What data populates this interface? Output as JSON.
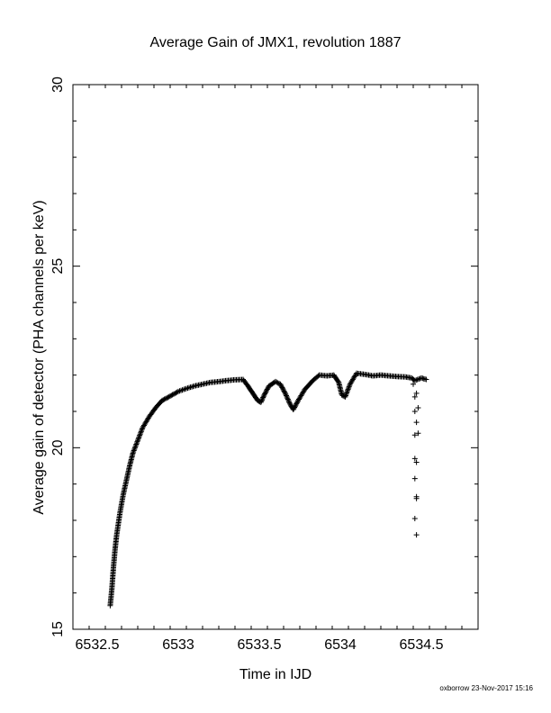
{
  "chart_data": {
    "type": "scatter",
    "title": "Average Gain of JMX1, revolution 1887",
    "xlabel": "Time in IJD",
    "ylabel": "Average gain of detector (PHA channels per keV)",
    "xlim": [
      6532.35,
      6534.85
    ],
    "ylim": [
      15,
      30
    ],
    "x_ticks": [
      6532.5,
      6533,
      6533.5,
      6534,
      6534.5
    ],
    "x_tick_labels": [
      "6532.5",
      "6533",
      "6533.5",
      "6534",
      "6534.5"
    ],
    "y_ticks": [
      15,
      20,
      25,
      30
    ],
    "y_tick_labels": [
      "15",
      "20",
      "25",
      "30"
    ],
    "y_minor_step": 1,
    "x_minor_step": 0.1,
    "grid": false,
    "marker": "+",
    "color": "#000000",
    "main_series": [
      [
        6532.58,
        15.65
      ],
      [
        6532.59,
        16.1
      ],
      [
        6532.6,
        16.7
      ],
      [
        6532.61,
        17.2
      ],
      [
        6532.62,
        17.6
      ],
      [
        6532.64,
        18.2
      ],
      [
        6532.66,
        18.7
      ],
      [
        6532.68,
        19.1
      ],
      [
        6532.7,
        19.5
      ],
      [
        6532.72,
        19.85
      ],
      [
        6532.75,
        20.2
      ],
      [
        6532.78,
        20.55
      ],
      [
        6532.82,
        20.85
      ],
      [
        6532.86,
        21.1
      ],
      [
        6532.9,
        21.3
      ],
      [
        6532.95,
        21.42
      ],
      [
        6533.0,
        21.55
      ],
      [
        6533.05,
        21.63
      ],
      [
        6533.1,
        21.7
      ],
      [
        6533.15,
        21.75
      ],
      [
        6533.2,
        21.8
      ],
      [
        6533.25,
        21.82
      ],
      [
        6533.3,
        21.85
      ],
      [
        6533.35,
        21.87
      ],
      [
        6533.4,
        21.88
      ],
      [
        6533.43,
        21.7
      ],
      [
        6533.46,
        21.5
      ],
      [
        6533.49,
        21.3
      ],
      [
        6533.51,
        21.25
      ],
      [
        6533.53,
        21.45
      ],
      [
        6533.56,
        21.7
      ],
      [
        6533.6,
        21.82
      ],
      [
        6533.63,
        21.75
      ],
      [
        6533.66,
        21.5
      ],
      [
        6533.69,
        21.2
      ],
      [
        6533.71,
        21.05
      ],
      [
        6533.74,
        21.3
      ],
      [
        6533.78,
        21.6
      ],
      [
        6533.83,
        21.85
      ],
      [
        6533.87,
        22.0
      ],
      [
        6533.92,
        21.98
      ],
      [
        6533.96,
        22.0
      ],
      [
        6533.99,
        21.8
      ],
      [
        6534.01,
        21.45
      ],
      [
        6534.03,
        21.4
      ],
      [
        6534.06,
        21.75
      ],
      [
        6534.1,
        22.05
      ],
      [
        6534.15,
        22.02
      ],
      [
        6534.2,
        21.98
      ],
      [
        6534.25,
        22.0
      ],
      [
        6534.3,
        21.98
      ],
      [
        6534.35,
        21.96
      ],
      [
        6534.4,
        21.95
      ],
      [
        6534.44,
        21.92
      ],
      [
        6534.46,
        21.85
      ],
      [
        6534.5,
        21.92
      ],
      [
        6534.53,
        21.88
      ]
    ],
    "scatter_points": [
      [
        6534.45,
        21.75
      ],
      [
        6534.47,
        21.5
      ],
      [
        6534.46,
        21.4
      ],
      [
        6534.48,
        21.1
      ],
      [
        6534.46,
        21.0
      ],
      [
        6534.47,
        20.7
      ],
      [
        6534.46,
        20.35
      ],
      [
        6534.48,
        20.4
      ],
      [
        6534.46,
        19.7
      ],
      [
        6534.47,
        19.6
      ],
      [
        6534.46,
        19.15
      ],
      [
        6534.47,
        18.65
      ],
      [
        6534.47,
        18.6
      ],
      [
        6534.46,
        18.05
      ],
      [
        6534.47,
        17.6
      ]
    ]
  },
  "footer": "oxborrow 23-Nov-2017 15:16"
}
